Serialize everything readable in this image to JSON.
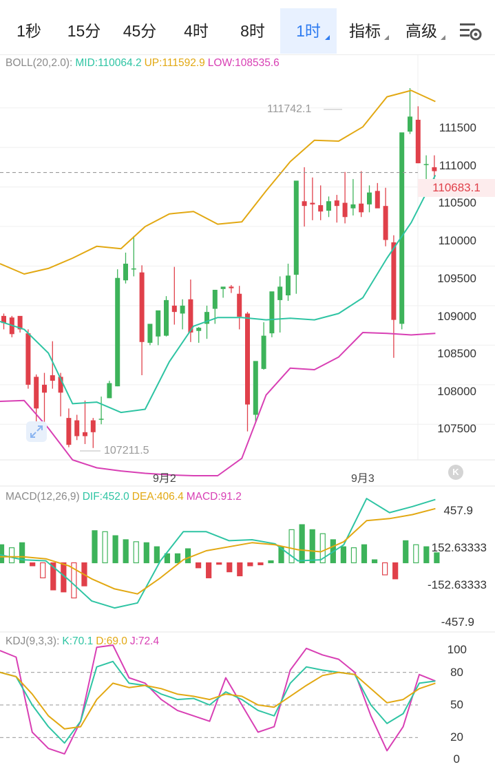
{
  "tabs": [
    {
      "label": "1秒",
      "active": false,
      "dropdown": false
    },
    {
      "label": "15分",
      "active": false,
      "dropdown": false
    },
    {
      "label": "45分",
      "active": false,
      "dropdown": false
    },
    {
      "label": "4时",
      "active": false,
      "dropdown": false
    },
    {
      "label": "8时",
      "active": false,
      "dropdown": false
    },
    {
      "label": "1时",
      "active": true,
      "dropdown": true
    },
    {
      "label": "指标",
      "active": false,
      "dropdown": true
    },
    {
      "label": "高级",
      "active": false,
      "dropdown": true
    }
  ],
  "icons": {
    "settings": "chart-settings-icon",
    "expand": "expand-icon",
    "k_logo": "k-logo-icon"
  },
  "colors": {
    "up": "#3db35a",
    "down": "#e0404a",
    "mid": "#2ec4a3",
    "upper": "#e2a812",
    "lower": "#d83fb4",
    "active": "#2f7cf0"
  },
  "boll": {
    "label": "BOLL(20,2.0):",
    "mid_text": "MID:110064.2",
    "up_text": "UP:111592.9",
    "low_text": "LOW:108535.6"
  },
  "macd": {
    "label": "MACD(12,26,9)",
    "dif_text": "DIF:452.0",
    "dea_text": "DEA:406.4",
    "macd_text": "MACD:91.2"
  },
  "kdj": {
    "label": "KDJ(9,3,3):",
    "k_text": "K:70.1",
    "d_text": "D:69.0",
    "j_text": "J:72.4"
  },
  "price_axis": [
    "111500",
    "111000",
    "110500",
    "110000",
    "109500",
    "109000",
    "108500",
    "108000",
    "107500"
  ],
  "current_price": "110683.1",
  "high_label": "111742.1",
  "low_label": "107211.5",
  "macd_axis": [
    "457.9",
    "152.63333",
    "-152.63333",
    "-457.9"
  ],
  "kdj_axis": [
    "100",
    "80",
    "50",
    "20",
    "0"
  ],
  "dates": [
    "9月2",
    "9月3"
  ],
  "chart_data": {
    "type": "candlestick",
    "price_range": [
      107050,
      111950
    ],
    "current_price": 110683.1,
    "candles": [
      [
        108870,
        108900,
        108780,
        108700
      ],
      [
        108850,
        108870,
        108640,
        108600
      ],
      [
        108870,
        108820,
        108700,
        108660
      ],
      [
        108650,
        108700,
        108000,
        107950
      ],
      [
        108100,
        108130,
        107700,
        107500
      ],
      [
        108000,
        108150,
        107900,
        107500
      ],
      [
        108120,
        108550,
        108050,
        107950
      ],
      [
        108100,
        108150,
        107900,
        107600
      ],
      [
        107580,
        107700,
        107240,
        107210
      ],
      [
        107550,
        107620,
        107350,
        107300
      ],
      [
        107400,
        107800,
        107350,
        107250
      ],
      [
        107550,
        107580,
        107400,
        107200
      ],
      [
        107560,
        107850,
        107570,
        107500
      ],
      [
        107830,
        108050,
        108020,
        107830
      ],
      [
        107980,
        109460,
        109350,
        107980
      ],
      [
        109320,
        109670,
        109530,
        109280
      ],
      [
        109460,
        109880,
        109470,
        109370
      ],
      [
        109420,
        109510,
        108540,
        108120
      ],
      [
        108530,
        108760,
        108770,
        108500
      ],
      [
        108610,
        108840,
        108940,
        108500
      ],
      [
        108620,
        109120,
        109070,
        108610
      ],
      [
        109000,
        109490,
        108920,
        108760
      ],
      [
        108900,
        109080,
        109000,
        108700
      ],
      [
        109080,
        109330,
        108660,
        108540
      ],
      [
        108680,
        108730,
        108720,
        108530
      ],
      [
        108770,
        109000,
        108920,
        108580
      ],
      [
        108960,
        109200,
        109200,
        108770
      ],
      [
        109210,
        109210,
        109240,
        109100
      ],
      [
        109240,
        109260,
        109220,
        109160
      ],
      [
        109150,
        109250,
        108860,
        108700
      ],
      [
        108900,
        108920,
        107750,
        107410
      ],
      [
        107620,
        108000,
        108300,
        107530
      ],
      [
        108200,
        108790,
        108620,
        108190
      ],
      [
        108650,
        109150,
        109180,
        108600
      ],
      [
        109070,
        109370,
        109240,
        108660
      ],
      [
        109130,
        109530,
        109380,
        109060
      ],
      [
        109390,
        109680,
        110580,
        109150
      ],
      [
        110320,
        110750,
        110260,
        110000
      ],
      [
        110300,
        110620,
        110280,
        110080
      ],
      [
        110270,
        110520,
        110190,
        110080
      ],
      [
        110200,
        110380,
        110320,
        110120
      ],
      [
        110330,
        110400,
        110260,
        110050
      ],
      [
        110300,
        110690,
        110120,
        110040
      ],
      [
        110230,
        110600,
        110280,
        110140
      ],
      [
        110290,
        110700,
        110180,
        110120
      ],
      [
        110280,
        110520,
        110430,
        110180
      ],
      [
        110450,
        110550,
        110230,
        110250
      ],
      [
        110260,
        110490,
        109830,
        109750
      ],
      [
        109800,
        109890,
        108820,
        108340
      ],
      [
        108770,
        110750,
        111190,
        108700
      ],
      [
        111200,
        111750,
        111390,
        111170
      ],
      [
        111350,
        111520,
        110800,
        110800
      ],
      [
        110780,
        110900,
        110790,
        110400
      ],
      [
        110750,
        110900,
        110700,
        110580
      ]
    ],
    "boll": {
      "mid": [
        108800,
        108700,
        108400,
        107760,
        107780,
        107650,
        107690,
        108290,
        108740,
        108850,
        108850,
        108820,
        108840,
        108820,
        108900,
        109100,
        109600,
        110050,
        110650
      ],
      "upper": [
        109530,
        109400,
        109470,
        109600,
        109750,
        109720,
        110000,
        110160,
        110190,
        110030,
        110060,
        110450,
        110820,
        111090,
        111080,
        111260,
        111640,
        111720,
        111580
      ],
      "lower": [
        107790,
        107800,
        107450,
        107050,
        106950,
        106910,
        106880,
        106860,
        106850,
        106850,
        107070,
        107870,
        108210,
        108190,
        108350,
        108660,
        108650,
        108630,
        108650
      ]
    },
    "macd": {
      "range": [
        -600,
        600
      ],
      "dif": [
        80,
        30,
        20,
        -170,
        -380,
        -450,
        -400,
        20,
        310,
        310,
        220,
        230,
        190,
        20,
        30,
        180,
        640,
        500,
        560,
        630
      ],
      "dea": [
        60,
        60,
        40,
        -30,
        -160,
        -260,
        -310,
        -150,
        30,
        120,
        160,
        200,
        180,
        130,
        110,
        210,
        420,
        440,
        480,
        540
      ],
      "hist": [
        180,
        150,
        200,
        -30,
        -150,
        -270,
        -290,
        -350,
        -230,
        320,
        310,
        270,
        230,
        210,
        200,
        160,
        90,
        90,
        140,
        -50,
        -150,
        -15,
        -90,
        -130,
        -30,
        -20,
        20,
        160,
        330,
        380,
        330,
        290,
        230,
        160,
        150,
        180,
        30,
        -120,
        -160,
        220,
        180,
        160,
        100
      ]
    },
    "kdj": {
      "range": [
        0,
        110
      ],
      "k": [
        80,
        76,
        50,
        30,
        15,
        35,
        85,
        90,
        70,
        68,
        60,
        55,
        56,
        50,
        62,
        55,
        45,
        40,
        70,
        85,
        82,
        80,
        78,
        50,
        33,
        42,
        70,
        72
      ],
      "d": [
        80,
        76,
        60,
        40,
        28,
        30,
        55,
        70,
        66,
        68,
        65,
        60,
        58,
        55,
        60,
        58,
        50,
        48,
        58,
        68,
        77,
        80,
        78,
        65,
        52,
        55,
        65,
        70
      ],
      "j": [
        100,
        94,
        25,
        10,
        5,
        35,
        103,
        105,
        75,
        70,
        55,
        45,
        40,
        35,
        75,
        50,
        25,
        30,
        82,
        102,
        96,
        92,
        80,
        40,
        8,
        30,
        78,
        72
      ]
    }
  }
}
